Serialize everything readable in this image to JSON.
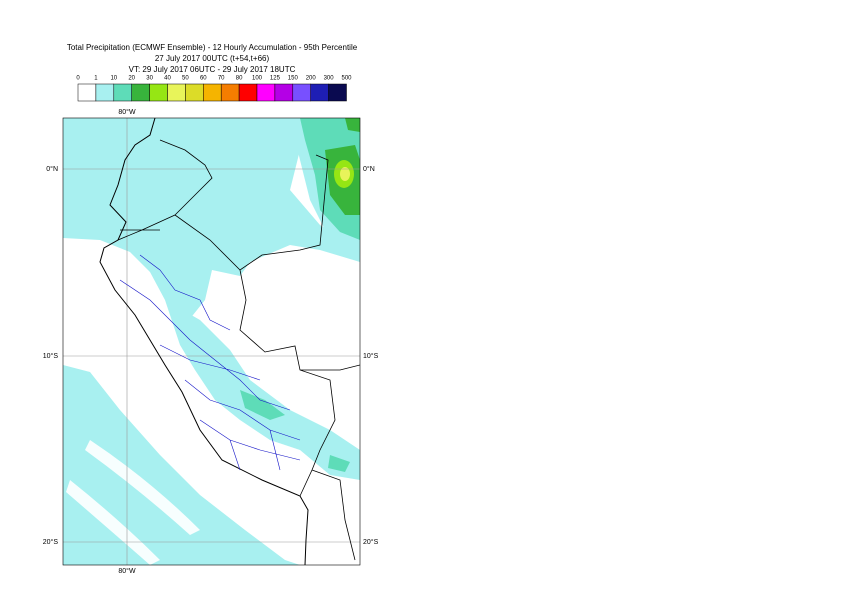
{
  "header": {
    "lines": [
      "Total Precipitation (ECMWF Ensemble) - 12 Hourly Accumulation - 95th Percentile",
      "27 July 2017 00UTC (t+54,t+66)",
      "VT: 29 July 2017 06UTC - 29 July 2017 18UTC"
    ]
  },
  "legend": {
    "labels": [
      "0",
      "1",
      "10",
      "20",
      "30",
      "40",
      "50",
      "60",
      "70",
      "80",
      "100",
      "125",
      "150",
      "200",
      "300",
      "500"
    ],
    "colors": [
      "#ffffff",
      "#a8f0f0",
      "#5edcb8",
      "#38b43c",
      "#96e614",
      "#e8f45a",
      "#dcdc28",
      "#f5b400",
      "#f57d00",
      "#ff0000",
      "#ff00ff",
      "#b400e6",
      "#7850ff",
      "#1e1eb4",
      "#0a0a50"
    ]
  },
  "map": {
    "lon_labels": [
      "80°W"
    ],
    "lat_labels": [
      "0°N",
      "10°S",
      "20°S"
    ]
  }
}
